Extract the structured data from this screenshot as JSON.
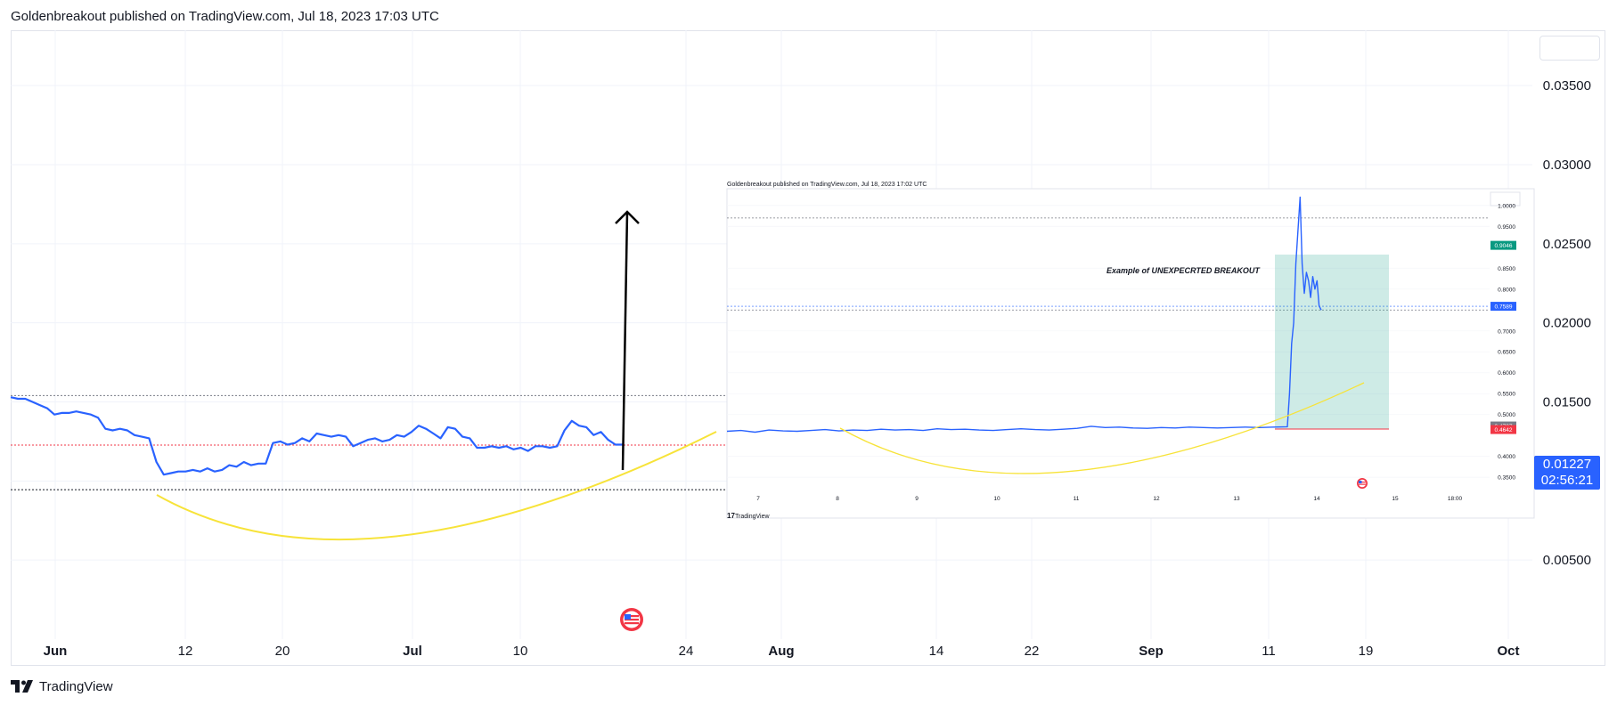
{
  "header": {
    "published": "Goldenbreakout published on TradingView.com, Jul 18, 2023 17:03 UTC"
  },
  "footer": {
    "brand": "TradingView"
  },
  "colors": {
    "price_line": "#2962ff",
    "curve": "#f7e339",
    "arrow": "#000000",
    "last_price_bg": "#2962ff",
    "grid": "#f0f3fa",
    "red_dotted": "#f23645"
  },
  "last_price": {
    "value": "0.01227",
    "countdown": "02:56:21"
  },
  "chart_data": [
    {
      "type": "line",
      "y_axis": {
        "ticks": [
          "0.03500",
          "0.03000",
          "0.02500",
          "0.02000",
          "0.01500",
          "0.01000",
          "0.00500"
        ],
        "values": [
          0.035,
          0.03,
          0.025,
          0.02,
          0.015,
          0.01,
          0.005
        ]
      },
      "x_axis": {
        "ticks": [
          "Jun",
          "12",
          "20",
          "Jul",
          "10",
          "24",
          "Aug",
          "14",
          "22",
          "Sep",
          "11",
          "19",
          "Oct"
        ]
      },
      "ylim": [
        0.0,
        0.0385
      ],
      "series": [
        {
          "values": [
            0.0153,
            0.0152,
            0.0152,
            0.015,
            0.0148,
            0.0146,
            0.0142,
            0.0143,
            0.0143,
            0.0144,
            0.0143,
            0.0142,
            0.014,
            0.0133,
            0.0132,
            0.0133,
            0.0132,
            0.0129,
            0.0128,
            0.0127,
            0.0112,
            0.0104,
            0.0105,
            0.0106,
            0.0106,
            0.0107,
            0.0106,
            0.0108,
            0.0106,
            0.0107,
            0.011,
            0.0109,
            0.0112,
            0.011,
            0.0111,
            0.0111,
            0.0124,
            0.0125,
            0.0123,
            0.0124,
            0.0127,
            0.0125,
            0.013,
            0.0129,
            0.0128,
            0.0129,
            0.0128,
            0.0122,
            0.0124,
            0.0126,
            0.0127,
            0.0125,
            0.0126,
            0.0129,
            0.0128,
            0.0131,
            0.0135,
            0.0133,
            0.013,
            0.0127,
            0.0134,
            0.0133,
            0.0128,
            0.0127,
            0.0121,
            0.0121,
            0.0122,
            0.0121,
            0.0122,
            0.012,
            0.0121,
            0.0119,
            0.0122,
            0.0122,
            0.0121,
            0.0122,
            0.0132,
            0.0138,
            0.0135,
            0.0134,
            0.0129,
            0.0131,
            0.0126,
            0.0123,
            0.0123
          ]
        }
      ]
    },
    {
      "type": "line",
      "title": "Example of UNEXPECRTED BREAKOUT",
      "header": "Goldenbreakout published on TradingView.com, Jul 18, 2023 17:02 UTC",
      "brand": "TradingView",
      "y_axis": {
        "ticks": [
          "1.0000",
          "0.9500",
          "0.8500",
          "0.8000",
          "0.7000",
          "0.6500",
          "0.6000",
          "0.5500",
          "0.5000",
          "0.4000",
          "0.3500"
        ],
        "values": [
          1.0,
          0.95,
          0.85,
          0.8,
          0.7,
          0.65,
          0.6,
          0.55,
          0.5,
          0.4,
          0.35
        ]
      },
      "price_tags": [
        {
          "label": "0.9046",
          "value": 0.9046,
          "color": "#089981"
        },
        {
          "label": "0.7589",
          "value": 0.7589,
          "color": "#2962ff"
        },
        {
          "label": "0.4727",
          "value": 0.4727,
          "color": "#787b86"
        },
        {
          "label": "0.4642",
          "value": 0.4642,
          "color": "#f23645"
        }
      ],
      "x_axis": {
        "ticks": [
          "7",
          "8",
          "9",
          "10",
          "11",
          "12",
          "13",
          "14",
          "15",
          "18:00"
        ]
      },
      "ylim": [
        0.31,
        1.04
      ],
      "series": [
        {
          "values": [
            0.46,
            0.462,
            0.458,
            0.463,
            0.461,
            0.46,
            0.462,
            0.464,
            0.461,
            0.463,
            0.462,
            0.465,
            0.463,
            0.464,
            0.462,
            0.466,
            0.464,
            0.465,
            0.463,
            0.462,
            0.464,
            0.466,
            0.464,
            0.463,
            0.465,
            0.467,
            0.472,
            0.469,
            0.47,
            0.468,
            0.467,
            0.469,
            0.468,
            0.47,
            0.469,
            0.468,
            0.469,
            0.47,
            0.469,
            0.47,
            0.471,
            0.55,
            0.67,
            0.72,
            0.86,
            0.94,
            1.02,
            0.86,
            0.79,
            0.84,
            0.82,
            0.78,
            0.83,
            0.8,
            0.82,
            0.76,
            0.75
          ]
        }
      ]
    }
  ]
}
